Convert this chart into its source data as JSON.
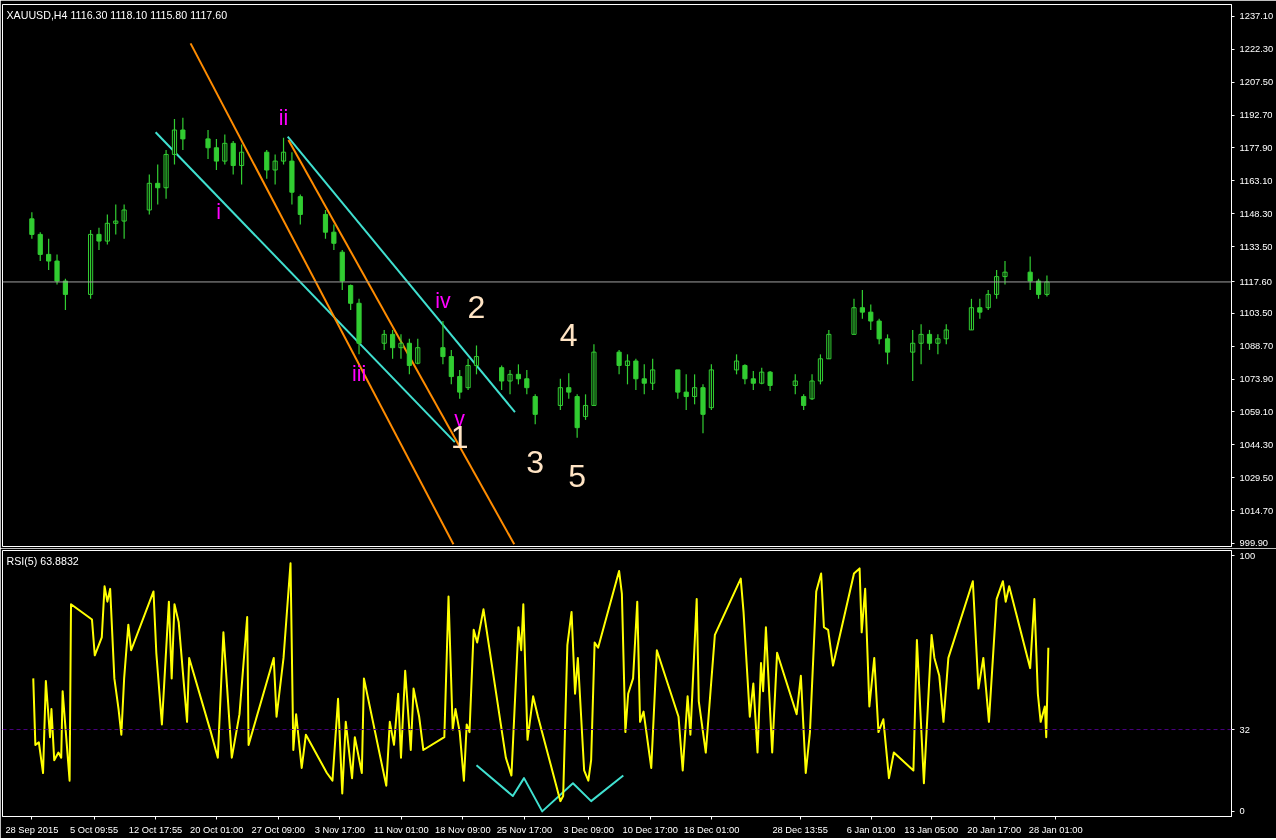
{
  "chart_data": [
    {
      "type": "candlestick",
      "title": "XAUUSD,H4  1116.30 1118.10 1115.80 1117.60",
      "xlim": [
        "2015-09-24T12:00",
        "2016-02-18"
      ],
      "ylim": [
        998.5,
        1242.5
      ],
      "tick_labels": "y",
      "grid": false,
      "yticks": [
        {
          "value": 1237.1,
          "label": "1237.10"
        },
        {
          "value": 1222.3,
          "label": "1222.30"
        },
        {
          "value": 1207.5,
          "label": "1207.50"
        },
        {
          "value": 1192.7,
          "label": "1192.70"
        },
        {
          "value": 1177.9,
          "label": "1177.90"
        },
        {
          "value": 1163.1,
          "label": "1163.10"
        },
        {
          "value": 1148.3,
          "label": "1148.30"
        },
        {
          "value": 1133.5,
          "label": "1133.50"
        },
        {
          "value": 1117.6,
          "label": "1117.60"
        },
        {
          "value": 1103.5,
          "label": "1103.50"
        },
        {
          "value": 1088.7,
          "label": "1088.70"
        },
        {
          "value": 1073.9,
          "label": "1073.90"
        },
        {
          "value": 1059.1,
          "label": "1059.10"
        },
        {
          "value": 1044.3,
          "label": "1044.30"
        },
        {
          "value": 1029.5,
          "label": "1029.50"
        },
        {
          "value": 1014.7,
          "label": "1014.70"
        },
        {
          "value": 999.9,
          "label": "999.90"
        }
      ],
      "ref_lines": [
        {
          "axis": "y",
          "value": 1117.6,
          "color": "#a0a0a0",
          "line_style": "solid"
        }
      ],
      "annotations": [
        {
          "text": "i",
          "x": "2015-10-20T06:00",
          "y": 1158
        },
        {
          "text": "ii",
          "x": "2015-10-28",
          "y": 1182.5
        },
        {
          "text": "iii",
          "x": "2015-11-06",
          "y": 1085
        },
        {
          "text": "iv",
          "x": "2015-11-16",
          "y": 1100
        },
        {
          "text": "v",
          "x": "2015-11-18",
          "y": 1065
        },
        {
          "text": "1",
          "x": "2015-11-18",
          "y": 1065
        },
        {
          "text": "2",
          "x": "2015-11-20",
          "y": 1089
        },
        {
          "text": "3",
          "x": "2015-11-27",
          "y": 1053.5
        },
        {
          "text": "4",
          "x": "2015-12-01",
          "y": 1076.5
        },
        {
          "text": "5",
          "x": "2015-12-02",
          "y": 1047.5
        }
      ],
      "series": [
        {
          "color": "#32cd32",
          "x": [
            "2015-09-28",
            "2015-09-29",
            "2015-09-30",
            "2015-10-01",
            "2015-10-02",
            "2015-10-05",
            "2015-10-06",
            "2015-10-07",
            "2015-10-08",
            "2015-10-09",
            "2015-10-12",
            "2015-10-13",
            "2015-10-14",
            "2015-10-15",
            "2015-10-16",
            "2015-10-19",
            "2015-10-20",
            "2015-10-21",
            "2015-10-22",
            "2015-10-23",
            "2015-10-26",
            "2015-10-27",
            "2015-10-28",
            "2015-10-29",
            "2015-10-30",
            "2015-11-02",
            "2015-11-03",
            "2015-11-04",
            "2015-11-05",
            "2015-11-06",
            "2015-11-09",
            "2015-11-10",
            "2015-11-11",
            "2015-11-12",
            "2015-11-13",
            "2015-11-16",
            "2015-11-17",
            "2015-11-18",
            "2015-11-19",
            "2015-11-20",
            "2015-11-23",
            "2015-11-24",
            "2015-11-25",
            "2015-11-26",
            "2015-11-27",
            "2015-11-30",
            "2015-12-01",
            "2015-12-02",
            "2015-12-03",
            "2015-12-04",
            "2015-12-07",
            "2015-12-08",
            "2015-12-09",
            "2015-12-10",
            "2015-12-11",
            "2015-12-14",
            "2015-12-15",
            "2015-12-16",
            "2015-12-17",
            "2015-12-18",
            "2015-12-21",
            "2015-12-22",
            "2015-12-23",
            "2015-12-24",
            "2015-12-25",
            "2015-12-28",
            "2015-12-29",
            "2015-12-30",
            "2015-12-31",
            "2016-01-01",
            "2016-01-04",
            "2016-01-05",
            "2016-01-06",
            "2016-01-07",
            "2016-01-08",
            "2016-01-11",
            "2016-01-12",
            "2016-01-13",
            "2016-01-14",
            "2016-01-15",
            "2016-01-18",
            "2016-01-19",
            "2016-01-20",
            "2016-01-21",
            "2016-01-22",
            "2016-01-25",
            "2016-01-26",
            "2016-01-27"
          ],
          "ohlc": [
            [
              1146,
              1149,
              1137,
              1139
            ],
            [
              1139,
              1140,
              1127,
              1130
            ],
            [
              1130,
              1137,
              1123,
              1127
            ],
            [
              1127,
              1130,
              1116.5,
              1118
            ],
            [
              1118,
              1119,
              1105,
              1112
            ],
            [
              1112,
              1141,
              1110,
              1139
            ],
            [
              1139,
              1142,
              1132,
              1136
            ],
            [
              1136,
              1148,
              1134.5,
              1144
            ],
            [
              1144,
              1152.5,
              1139,
              1145
            ],
            [
              1145,
              1152.5,
              1137,
              1150
            ],
            [
              1150,
              1166,
              1148,
              1162
            ],
            [
              1162,
              1170.5,
              1152.5,
              1160
            ],
            [
              1160,
              1177,
              1155,
              1175
            ],
            [
              1175,
              1191,
              1170.5,
              1186
            ],
            [
              1186,
              1191.5,
              1177,
              1182
            ],
            [
              1182,
              1186,
              1173,
              1178
            ],
            [
              1178,
              1182,
              1168,
              1172
            ],
            [
              1172,
              1184,
              1170.5,
              1180
            ],
            [
              1180,
              1181,
              1166,
              1170
            ],
            [
              1170,
              1179.5,
              1161.5,
              1176
            ],
            [
              1176,
              1177,
              1164,
              1168
            ],
            [
              1168,
              1175,
              1161.5,
              1172
            ],
            [
              1172,
              1182.5,
              1170.5,
              1176
            ],
            [
              1172,
              1176,
              1152.5,
              1158
            ],
            [
              1156,
              1157,
              1143.5,
              1148
            ],
            [
              1148,
              1150,
              1137,
              1140
            ],
            [
              1140,
              1143.5,
              1132,
              1135
            ],
            [
              1131,
              1132,
              1114,
              1118
            ],
            [
              1116,
              1116.5,
              1105,
              1108
            ],
            [
              1108,
              1110,
              1085,
              1090
            ],
            [
              1090,
              1096,
              1087,
              1094
            ],
            [
              1094,
              1096,
              1083,
              1088
            ],
            [
              1088,
              1094,
              1083,
              1090
            ],
            [
              1090,
              1092,
              1076,
              1080
            ],
            [
              1081,
              1092,
              1080.5,
              1088
            ],
            [
              1088,
              1100,
              1080.5,
              1084
            ],
            [
              1084,
              1087,
              1071.5,
              1075
            ],
            [
              1075,
              1078,
              1065,
              1068
            ],
            [
              1070,
              1083,
              1069,
              1080
            ],
            [
              1080,
              1089,
              1076,
              1084
            ],
            [
              1079,
              1080,
              1069,
              1073
            ],
            [
              1073,
              1078,
              1067,
              1076
            ],
            [
              1076,
              1080.5,
              1071.5,
              1074
            ],
            [
              1074,
              1078,
              1067,
              1070
            ],
            [
              1066,
              1067,
              1053.5,
              1058
            ],
            [
              1062,
              1074,
              1060,
              1070
            ],
            [
              1070,
              1076.5,
              1065,
              1068
            ],
            [
              1066,
              1067,
              1047.5,
              1052
            ],
            [
              1057,
              1067,
              1055.5,
              1062
            ],
            [
              1062,
              1089.5,
              1062,
              1086
            ],
            [
              1086,
              1087,
              1076,
              1080
            ],
            [
              1080,
              1085,
              1071.5,
              1082
            ],
            [
              1082,
              1083,
              1069,
              1074
            ],
            [
              1074,
              1080.5,
              1067,
              1072
            ],
            [
              1072,
              1083,
              1069,
              1078
            ],
            [
              1078,
              1078,
              1065,
              1068
            ],
            [
              1068,
              1076,
              1060,
              1066
            ],
            [
              1066,
              1076,
              1062.5,
              1070
            ],
            [
              1070,
              1071.5,
              1049.5,
              1058
            ],
            [
              1061,
              1080.5,
              1060,
              1078
            ],
            [
              1078,
              1085,
              1076,
              1082
            ],
            [
              1080,
              1080.5,
              1071.5,
              1074
            ],
            [
              1074,
              1077.5,
              1069,
              1072
            ],
            [
              1072,
              1079,
              1071.5,
              1077
            ],
            [
              1077,
              1077.5,
              1068.5,
              1071
            ],
            [
              1071,
              1076,
              1067,
              1073
            ],
            [
              1066,
              1067,
              1060,
              1062
            ],
            [
              1065,
              1076,
              1064.5,
              1073
            ],
            [
              1073,
              1085,
              1071.5,
              1083
            ],
            [
              1083,
              1096,
              1083,
              1094
            ],
            [
              1094,
              1110,
              1094,
              1106
            ],
            [
              1106,
              1114,
              1101,
              1104
            ],
            [
              1104,
              1107.5,
              1096,
              1100
            ],
            [
              1100,
              1101,
              1089.5,
              1092
            ],
            [
              1092,
              1094,
              1080.5,
              1086
            ],
            [
              1086,
              1096,
              1073,
              1090
            ],
            [
              1090,
              1098.5,
              1080.5,
              1094
            ],
            [
              1094,
              1096,
              1087,
              1090
            ],
            [
              1090,
              1094,
              1085,
              1092
            ],
            [
              1092,
              1098.5,
              1089.5,
              1096
            ],
            [
              1096,
              1110,
              1096,
              1106
            ],
            [
              1106,
              1110,
              1101,
              1104
            ],
            [
              1106,
              1114,
              1105,
              1112
            ],
            [
              1112,
              1123,
              1110,
              1120
            ],
            [
              1120,
              1127,
              1116.5,
              1122
            ],
            [
              1122,
              1129,
              1114,
              1118
            ],
            [
              1118,
              1119,
              1110,
              1112
            ],
            [
              1112,
              1120.5,
              1111,
              1117.6
            ]
          ]
        },
        {
          "type": "line",
          "color": "#40e0d0",
          "x": [
            "2015-10-12T18:00",
            "2015-11-17T10:00"
          ],
          "values": [
            1185,
            1045.5
          ]
        },
        {
          "type": "line",
          "color": "#40e0d0",
          "x": [
            "2015-10-28T12:00",
            "2015-11-24T14:00"
          ],
          "values": [
            1183,
            1059
          ]
        },
        {
          "type": "line",
          "color": "#ff8c00",
          "x": [
            "2015-10-16T22:00",
            "2015-11-17T06:00"
          ],
          "values": [
            1225,
            999.5
          ]
        },
        {
          "type": "line",
          "color": "#ff8c00",
          "x": [
            "2015-10-28T14:00",
            "2015-11-24T12:00"
          ],
          "values": [
            1181.5,
            999.5
          ]
        }
      ]
    },
    {
      "type": "line",
      "title": "RSI(5) 63.8832",
      "xlim": [
        "2015-09-24T12:00",
        "2016-02-18"
      ],
      "ylim": [
        -2,
        102
      ],
      "grid": false,
      "yticks": [
        0,
        32,
        100
      ],
      "xticks": [
        {
          "value": "2015-09-28",
          "label": "28 Sep 2015"
        },
        {
          "value": "2015-10-05T09:55",
          "label": "5 Oct 09:55"
        },
        {
          "value": "2015-10-12T17:55",
          "label": "12 Oct 17:55"
        },
        {
          "value": "2015-10-20T01:00",
          "label": "20 Oct 01:00"
        },
        {
          "value": "2015-10-27T09:00",
          "label": "27 Oct 09:00"
        },
        {
          "value": "2015-11-03T17:00",
          "label": "3 Nov 17:00"
        },
        {
          "value": "2015-11-11T01:00",
          "label": "11 Nov 01:00"
        },
        {
          "value": "2015-11-18T09:00",
          "label": "18 Nov 09:00"
        },
        {
          "value": "2015-11-25T17:00",
          "label": "25 Nov 17:00"
        },
        {
          "value": "2015-12-03T09:00",
          "label": "3 Dec 09:00"
        },
        {
          "value": "2015-12-10T17:00",
          "label": "10 Dec 17:00"
        },
        {
          "value": "2015-12-18T01:00",
          "label": "18 Dec 01:00"
        },
        {
          "value": "2015-12-28T13:55",
          "label": "28 Dec 13:55"
        },
        {
          "value": "2016-01-06T01:00",
          "label": "6 Jan 01:00"
        },
        {
          "value": "2016-01-13T05:00",
          "label": "13 Jan 05:00"
        },
        {
          "value": "2016-01-20T17:00",
          "label": "20 Jan 17:00"
        },
        {
          "value": "2016-01-28T01:00",
          "label": "28 Jan 01:00"
        }
      ],
      "ref_lines": [
        {
          "axis": "y",
          "value": 32,
          "color": "#4b0082",
          "line_style": "dashed"
        }
      ],
      "series": [
        {
          "color": "#ffff00",
          "x": [
            "2015-09-28T04:00",
            "2015-09-28T10:00",
            "2015-09-28T20:00",
            "2015-09-29T08:00",
            "2015-09-29T16:00",
            "2015-09-30T04:00",
            "2015-09-30T08:00",
            "2015-09-30T16:00",
            "2015-10-01T04:00",
            "2015-10-01T12:00",
            "2015-10-01T16:00",
            "2015-10-02T12:00",
            "2015-10-02T16:00",
            "2015-10-05T04:00",
            "2015-10-05T12:00",
            "2015-10-06T08:00",
            "2015-10-06T16:00",
            "2015-10-07T00:00",
            "2015-10-07T08:00",
            "2015-10-07T20:00",
            "2015-10-08T08:00",
            "2015-10-08T16:00",
            "2015-10-09T00:00",
            "2015-10-09T12:00",
            "2015-10-09T20:00",
            "2015-10-12T12:00",
            "2015-10-12T20:00",
            "2015-10-13T12:00",
            "2015-10-14T08:00",
            "2015-10-14T16:00",
            "2015-10-15T00:00",
            "2015-10-15T12:00",
            "2015-10-16T12:00",
            "2015-10-16T18:00",
            "2015-10-19T08:00",
            "2015-10-20T04:00",
            "2015-10-20T20:00",
            "2015-10-21T20:00",
            "2015-10-22T18:00",
            "2015-10-23T16:00",
            "2015-10-23T20:00",
            "2015-10-26T20:00",
            "2015-10-27T04:00",
            "2015-10-28T00:00",
            "2015-10-28T20:00",
            "2015-10-29T04:00",
            "2015-10-29T12:00",
            "2015-10-30T04:00",
            "2015-10-30T16:00",
            "2015-11-02T04:00",
            "2015-11-02T20:00",
            "2015-11-03T12:00",
            "2015-11-04T00:00",
            "2015-11-04T10:00",
            "2015-11-05T04:00",
            "2015-11-05T12:00",
            "2015-11-06T08:00",
            "2015-11-06T14:00",
            "2015-11-09T06:00",
            "2015-11-09T16:00",
            "2015-11-10T04:00",
            "2015-11-10T16:00",
            "2015-11-11T00:00",
            "2015-11-11T12:00",
            "2015-11-12T04:00",
            "2015-11-12T12:00",
            "2015-11-13T04:00",
            "2015-11-13T16:00",
            "2015-11-16T04:00",
            "2015-11-16T16:00",
            "2015-11-17T04:00",
            "2015-11-17T12:00",
            "2015-11-18T00:00",
            "2015-11-18T12:00",
            "2015-11-18T20:00",
            "2015-11-19T04:00",
            "2015-11-19T16:00",
            "2015-11-20T02:00",
            "2015-11-20T20:00",
            "2015-11-23T12:00",
            "2015-11-24T04:00",
            "2015-11-25T00:00",
            "2015-11-25T08:00",
            "2015-11-25T14:00",
            "2015-11-26T02:00",
            "2015-11-26T18:00",
            "2015-11-27T08:00",
            "2015-11-30T00:00",
            "2015-11-30T08:00",
            "2015-11-30T20:00",
            "2015-12-01T08:00",
            "2015-12-01T18:00",
            "2015-12-02T02:00",
            "2015-12-02T20:00",
            "2015-12-03T08:00",
            "2015-12-03T16:00",
            "2015-12-04T02:00",
            "2015-12-04T12:00",
            "2015-12-07T00:00",
            "2015-12-07T08:00",
            "2015-12-07T18:00",
            "2015-12-08T02:00",
            "2015-12-08T16:00",
            "2015-12-09T04:00",
            "2015-12-09T12:00",
            "2015-12-09T22:00",
            "2015-12-10T20:00",
            "2015-12-11T12:00",
            "2015-12-14T02:00",
            "2015-12-14T14:00",
            "2015-12-15T04:00",
            "2015-12-15T12:00",
            "2015-12-16T06:00",
            "2015-12-16T12:00",
            "2015-12-17T08:00",
            "2015-12-18T10:00",
            "2015-12-21T12:00",
            "2015-12-21T20:00",
            "2015-12-22T14:00",
            "2015-12-23T00:00",
            "2015-12-23T12:00",
            "2015-12-23T22:00",
            "2015-12-24T04:00",
            "2015-12-24T12:00",
            "2015-12-25T06:00",
            "2015-12-25T20:00",
            "2015-12-28T04:00",
            "2015-12-28T16:00",
            "2015-12-29T06:00",
            "2015-12-29T18:00",
            "2015-12-30T12:00",
            "2015-12-31T02:00",
            "2015-12-31T10:00",
            "2015-12-31T22:00",
            "2016-01-01T12:00",
            "2016-01-04T00:00",
            "2016-01-04T16:00",
            "2016-01-04T22:00",
            "2016-01-05T08:00",
            "2016-01-05T20:00",
            "2016-01-06T10:00",
            "2016-01-06T22:00",
            "2016-01-07T12:00",
            "2016-01-08T04:00",
            "2016-01-08T18:00",
            "2016-01-11T02:00",
            "2016-01-11T12:00",
            "2016-01-12T08:00",
            "2016-01-13T06:00",
            "2016-01-13T14:00",
            "2016-01-14T04:00",
            "2016-01-14T16:00",
            "2016-01-15T06:00",
            "2016-01-18T04:00",
            "2016-01-18T20:00",
            "2016-01-19T10:00",
            "2016-01-20T02:00",
            "2016-01-21T00:00",
            "2016-01-21T18:00",
            "2016-01-22T02:00",
            "2016-01-22T12:00",
            "2016-01-25T00:00",
            "2016-01-25T12:00",
            "2016-01-25T22:00",
            "2016-01-26T06:00",
            "2016-01-26T18:00",
            "2016-01-26T22:00",
            "2016-01-27T04:00"
          ],
          "values": [
            52,
            26,
            27,
            15,
            51,
            29,
            40,
            20,
            23,
            21,
            47,
            12,
            81,
            75,
            61,
            68,
            88,
            82,
            87,
            52,
            40,
            30,
            52,
            73,
            63,
            86,
            62,
            34,
            82,
            52,
            81,
            74,
            35,
            60,
            31,
            21,
            70,
            21,
            38,
            76,
            26,
            60,
            37,
            60,
            97,
            24,
            38,
            17,
            30,
            15,
            12,
            44,
            7,
            35,
            13,
            29,
            15,
            52,
            10,
            35,
            26,
            46,
            21,
            55,
            24,
            48,
            37,
            24,
            29,
            84,
            32,
            40,
            31,
            12,
            34,
            31,
            71,
            66,
            79,
            21,
            14,
            72,
            63,
            81,
            28,
            45,
            37,
            4,
            6,
            65,
            78,
            46,
            60,
            16,
            12,
            20,
            66,
            64,
            94,
            85,
            31,
            46,
            52,
            82,
            35,
            39,
            17,
            63,
            37,
            16,
            45,
            30,
            83,
            43,
            23,
            69,
            91,
            78,
            37,
            50,
            23,
            58,
            47,
            72,
            23,
            62,
            38,
            53,
            15,
            31,
            86,
            93,
            72,
            71,
            57,
            93,
            95,
            70,
            87,
            41,
            60,
            31,
            36,
            13,
            23,
            16,
            67,
            11,
            69,
            60,
            53,
            35,
            60,
            90,
            48,
            60,
            35,
            83,
            90,
            82,
            88,
            56,
            83,
            46,
            35,
            41,
            29,
            64
          ]
        },
        {
          "type": "line",
          "color": "#40e0d0",
          "x": [
            "2015-11-20T00:00",
            "2015-11-24T08:00",
            "2015-11-25T16:00",
            "2015-11-27T20:00",
            "2015-12-01T12:00",
            "2015-12-03T16:00",
            "2015-12-07T12:00"
          ],
          "values": [
            18,
            6,
            13,
            0,
            11,
            4,
            14
          ]
        }
      ]
    }
  ]
}
